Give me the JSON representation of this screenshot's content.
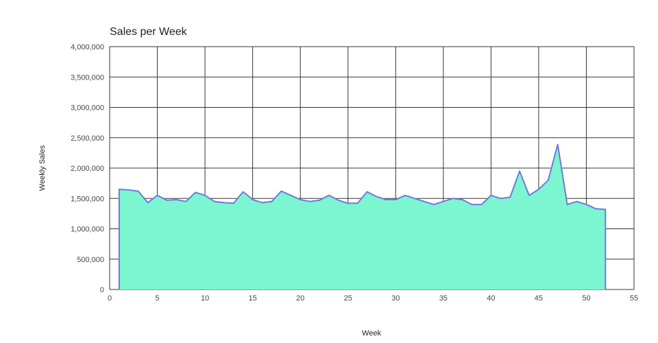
{
  "chart": {
    "title": "Sales per Week",
    "xlabel": "Week",
    "ylabel": "Weekly Sales"
  },
  "chart_data": {
    "type": "area",
    "title": "Sales per Week",
    "xlabel": "Week",
    "ylabel": "Weekly Sales",
    "x": [
      1,
      2,
      3,
      4,
      5,
      6,
      7,
      8,
      9,
      10,
      11,
      12,
      13,
      14,
      15,
      16,
      17,
      18,
      19,
      20,
      21,
      22,
      23,
      24,
      25,
      26,
      27,
      28,
      29,
      30,
      31,
      32,
      33,
      34,
      35,
      36,
      37,
      38,
      39,
      40,
      41,
      42,
      43,
      44,
      45,
      46,
      47,
      48,
      49,
      50,
      51,
      52
    ],
    "values": [
      1650000,
      1640000,
      1620000,
      1430000,
      1550000,
      1470000,
      1480000,
      1450000,
      1600000,
      1550000,
      1450000,
      1430000,
      1420000,
      1610000,
      1480000,
      1430000,
      1450000,
      1620000,
      1550000,
      1480000,
      1450000,
      1470000,
      1550000,
      1470000,
      1420000,
      1420000,
      1610000,
      1530000,
      1480000,
      1480000,
      1550000,
      1500000,
      1450000,
      1400000,
      1450000,
      1500000,
      1480000,
      1400000,
      1400000,
      1550000,
      1500000,
      1520000,
      1950000,
      1550000,
      1650000,
      1800000,
      2390000,
      1400000,
      1450000,
      1400000,
      1330000,
      1320000
    ],
    "xlim": [
      0,
      55
    ],
    "ylim": [
      0,
      4000000
    ],
    "x_ticks": [
      0,
      5,
      10,
      15,
      20,
      25,
      30,
      35,
      40,
      45,
      50,
      55
    ],
    "y_ticks": [
      0,
      500000,
      1000000,
      1500000,
      2000000,
      2500000,
      3000000,
      3500000,
      4000000
    ],
    "grid": true,
    "legend_position": "none",
    "fill_color": "#7bf6d0",
    "stroke_color": "#6e79da",
    "grid_color": "#333333",
    "axis_text_color": "#444444",
    "background": "#ffffff"
  }
}
